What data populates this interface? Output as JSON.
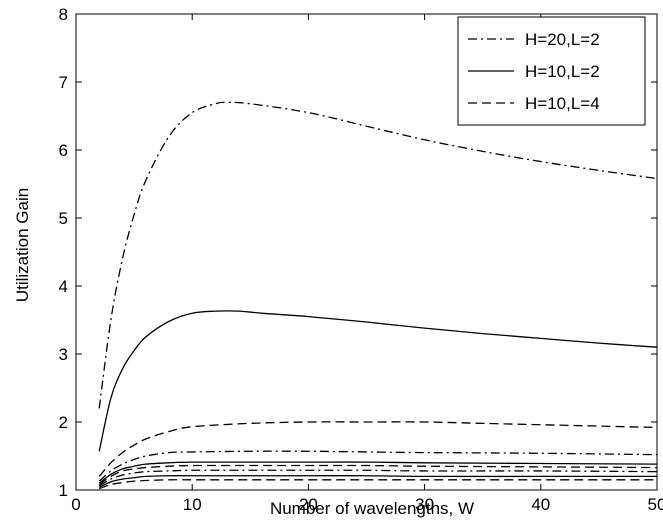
{
  "chart_data": {
    "type": "line",
    "title": "",
    "xlabel": "Number of wavelengths, W",
    "ylabel": "Utilization Gain",
    "xlim": [
      0,
      50
    ],
    "ylim": [
      1,
      8
    ],
    "xticks": [
      0,
      10,
      20,
      30,
      40,
      50
    ],
    "yticks": [
      1,
      2,
      3,
      4,
      5,
      6,
      7,
      8
    ],
    "grid": false,
    "legend_position": "top-right",
    "series": [
      {
        "name": "H=20,L=2",
        "style": "dashdot",
        "x": [
          2,
          3,
          4,
          5,
          6,
          8,
          10,
          12,
          13,
          15,
          20,
          25,
          30,
          35,
          40,
          45,
          50
        ],
        "y": [
          2.2,
          3.5,
          4.4,
          5.05,
          5.55,
          6.2,
          6.55,
          6.68,
          6.7,
          6.68,
          6.55,
          6.35,
          6.15,
          5.98,
          5.83,
          5.7,
          5.58
        ]
      },
      {
        "name": "H=10,L=2",
        "style": "solid",
        "x": [
          2,
          3,
          4,
          5,
          6,
          8,
          10,
          12,
          14,
          16,
          20,
          25,
          30,
          35,
          40,
          45,
          50
        ],
        "y": [
          1.57,
          2.35,
          2.78,
          3.05,
          3.25,
          3.48,
          3.6,
          3.63,
          3.63,
          3.6,
          3.55,
          3.47,
          3.38,
          3.3,
          3.23,
          3.16,
          3.1
        ]
      },
      {
        "name": "H=10,L=4",
        "style": "dashed",
        "x": [
          2,
          3,
          4,
          5,
          6,
          8,
          10,
          15,
          20,
          25,
          30,
          35,
          40,
          45,
          50
        ],
        "y": [
          1.2,
          1.4,
          1.55,
          1.66,
          1.75,
          1.86,
          1.93,
          1.98,
          2.0,
          2.0,
          2.0,
          1.98,
          1.96,
          1.94,
          1.92
        ]
      },
      {
        "style": "dashdot",
        "x": [
          2,
          3,
          4,
          5,
          6,
          8,
          10,
          15,
          20,
          25,
          30,
          40,
          50
        ],
        "y": [
          1.13,
          1.28,
          1.38,
          1.45,
          1.5,
          1.55,
          1.56,
          1.57,
          1.57,
          1.56,
          1.55,
          1.54,
          1.52
        ]
      },
      {
        "style": "solid",
        "x": [
          2,
          3,
          4,
          5,
          6,
          8,
          10,
          15,
          20,
          25,
          30,
          40,
          50
        ],
        "y": [
          1.1,
          1.23,
          1.31,
          1.35,
          1.38,
          1.4,
          1.41,
          1.41,
          1.41,
          1.41,
          1.4,
          1.39,
          1.38
        ]
      },
      {
        "style": "dashed",
        "x": [
          2,
          3,
          4,
          5,
          6,
          8,
          10,
          15,
          20,
          25,
          30,
          40,
          50
        ],
        "y": [
          1.08,
          1.2,
          1.28,
          1.31,
          1.33,
          1.35,
          1.36,
          1.36,
          1.36,
          1.36,
          1.35,
          1.34,
          1.33
        ]
      },
      {
        "style": "dashdot",
        "x": [
          2,
          3,
          4,
          5,
          6,
          8,
          10,
          15,
          20,
          25,
          30,
          40,
          50
        ],
        "y": [
          1.06,
          1.16,
          1.22,
          1.25,
          1.27,
          1.28,
          1.29,
          1.29,
          1.29,
          1.29,
          1.28,
          1.28,
          1.27
        ]
      },
      {
        "style": "solid",
        "x": [
          2,
          3,
          4,
          5,
          6,
          8,
          10,
          15,
          20,
          25,
          30,
          40,
          50
        ],
        "y": [
          1.04,
          1.12,
          1.16,
          1.18,
          1.2,
          1.21,
          1.21,
          1.21,
          1.21,
          1.21,
          1.2,
          1.2,
          1.2
        ]
      },
      {
        "style": "dashed",
        "x": [
          2,
          3,
          4,
          5,
          6,
          8,
          10,
          15,
          20,
          25,
          30,
          40,
          50
        ],
        "y": [
          1.02,
          1.08,
          1.11,
          1.13,
          1.14,
          1.15,
          1.15,
          1.15,
          1.15,
          1.15,
          1.15,
          1.15,
          1.15
        ]
      }
    ]
  }
}
